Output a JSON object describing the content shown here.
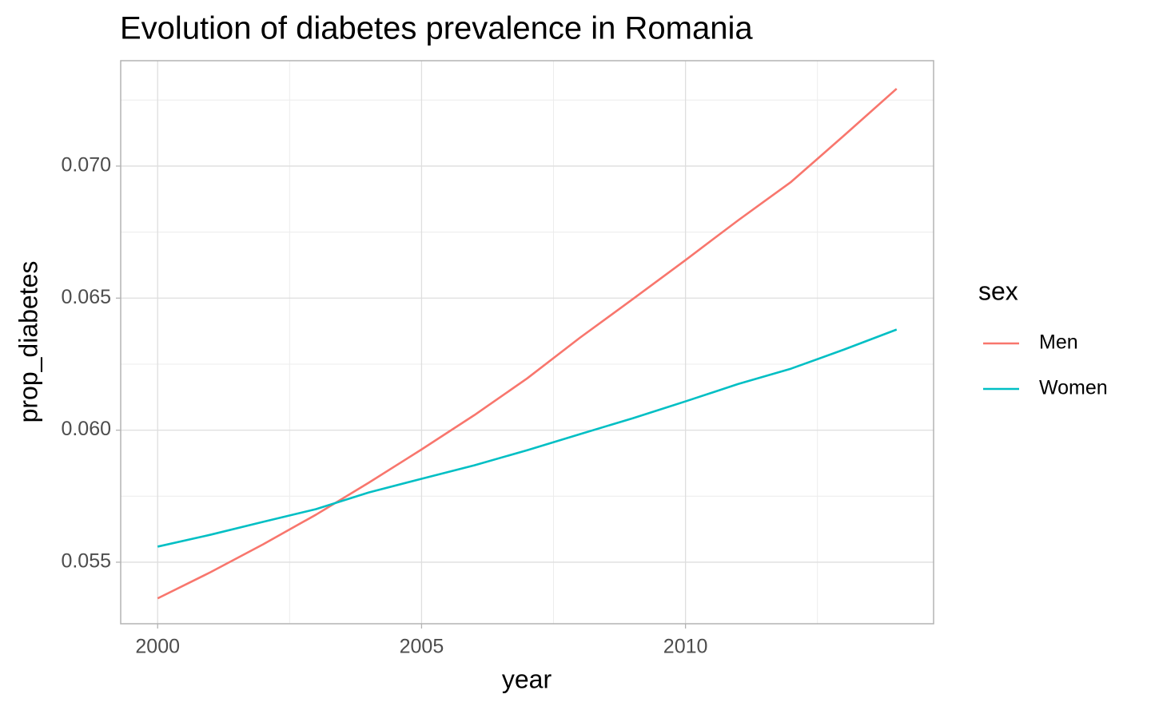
{
  "chart_data": {
    "type": "line",
    "title": "Evolution of diabetes prevalence in Romania",
    "x_label": "year",
    "y_label": "prop_diabetes",
    "legend_title": "sex",
    "legend_position": "right",
    "x": [
      2000,
      2001,
      2002,
      2003,
      2004,
      2005,
      2006,
      2007,
      2008,
      2009,
      2010,
      2011,
      2012,
      2013,
      2014
    ],
    "series": [
      {
        "name": "Men",
        "color": "#F8766D",
        "values": [
          0.05363,
          0.05462,
          0.05568,
          0.0568,
          0.05801,
          0.05927,
          0.06057,
          0.06196,
          0.0635,
          0.06496,
          0.06644,
          0.06795,
          0.0694,
          0.07115,
          0.07293
        ]
      },
      {
        "name": "Women",
        "color": "#00BFC4",
        "values": [
          0.05559,
          0.05604,
          0.05653,
          0.05701,
          0.05764,
          0.05816,
          0.05867,
          0.05924,
          0.05985,
          0.06045,
          0.06109,
          0.06175,
          0.06233,
          0.06305,
          0.06381
        ]
      }
    ],
    "xlim": [
      1999.3,
      2014.7
    ],
    "xticks": [
      2000,
      2005,
      2010
    ],
    "ylim": [
      0.05267,
      0.07399
    ],
    "yticks": [
      0.055,
      {
        "value": 0.06,
        "label": "0.060"
      },
      0.065,
      {
        "value": 0.07,
        "label": "0.070"
      }
    ],
    "grid": true
  }
}
